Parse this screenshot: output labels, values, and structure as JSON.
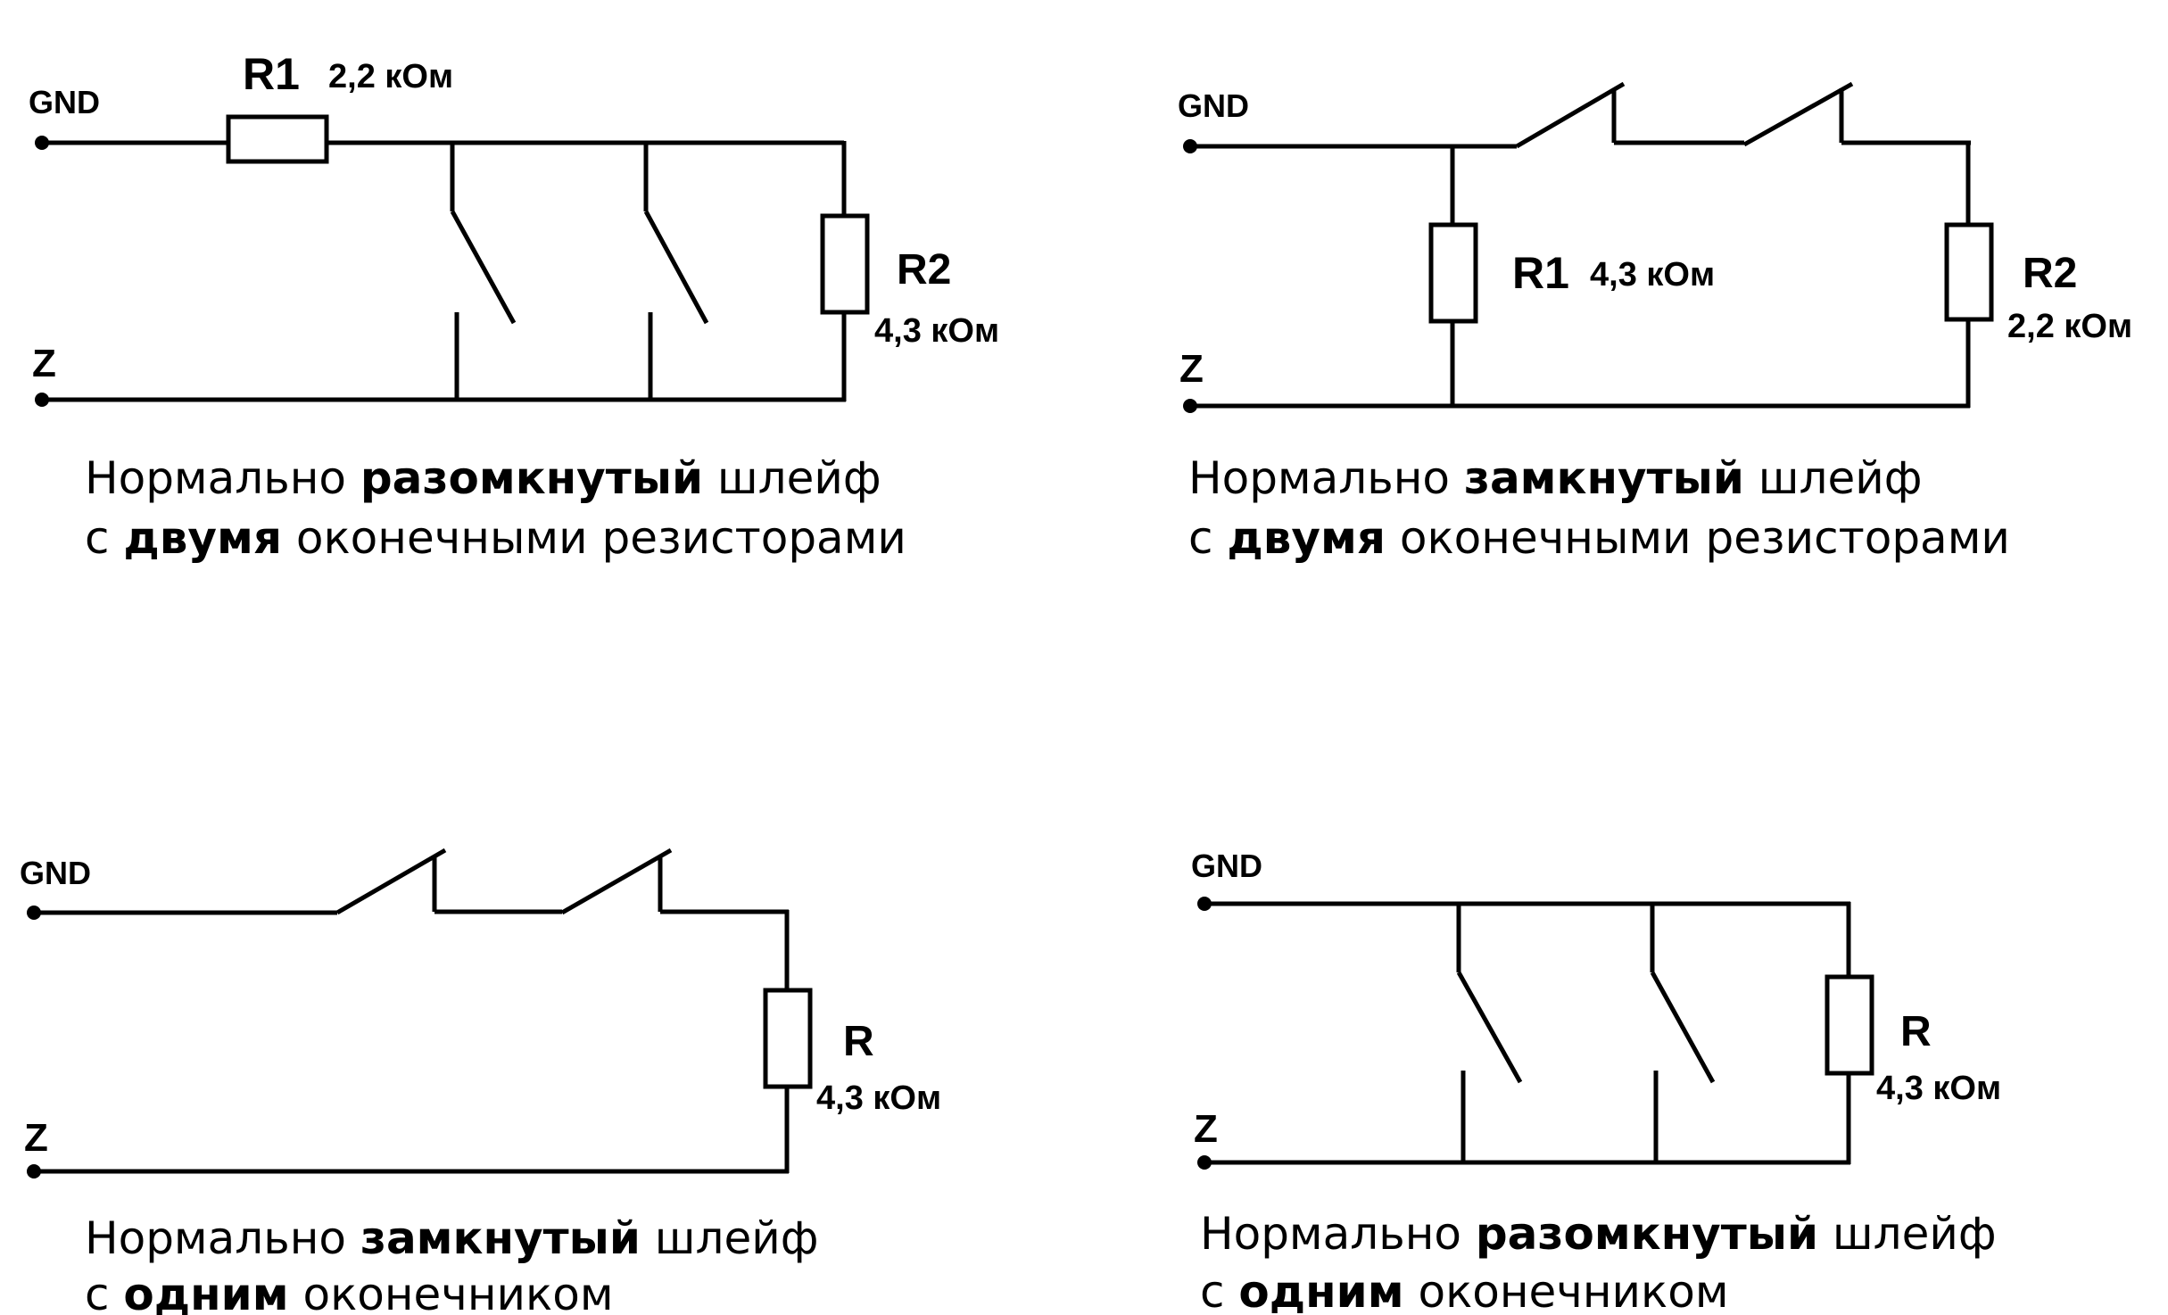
{
  "panels": [
    {
      "gnd": "GND",
      "z": "Z",
      "r1": {
        "name": "R1",
        "value": "2,2 кОм"
      },
      "r2": {
        "name": "R2",
        "value": "4,3 кОм"
      },
      "caption": {
        "l1a": "Нормально ",
        "l1b": "разомкнутый",
        "l1c": " шлейф",
        "l2a": "с ",
        "l2b": "двумя",
        "l2c": " оконечными резисторами"
      }
    },
    {
      "gnd": "GND",
      "z": "Z",
      "r1": {
        "name": "R1",
        "value": "4,3 кОм"
      },
      "r2": {
        "name": "R2",
        "value": "2,2 кОм"
      },
      "caption": {
        "l1a": "Нормально ",
        "l1b": "замкнутый",
        "l1c": " шлейф",
        "l2a": "с ",
        "l2b": "двумя",
        "l2c": " оконечными резисторами"
      }
    },
    {
      "gnd": "GND",
      "z": "Z",
      "r": {
        "name": "R",
        "value": "4,3 кОм"
      },
      "caption": {
        "l1a": "Нормально ",
        "l1b": "замкнутый",
        "l1c": " шлейф",
        "l2a": "с ",
        "l2b": "одним",
        "l2c": " оконечником"
      }
    },
    {
      "gnd": "GND",
      "z": "Z",
      "r": {
        "name": "R",
        "value": "4,3 кОм"
      },
      "caption": {
        "l1a": "Нормально ",
        "l1b": "разомкнутый",
        "l1c": " шлейф",
        "l2a": "с ",
        "l2b": "одним",
        "l2c": " оконечником"
      }
    }
  ]
}
